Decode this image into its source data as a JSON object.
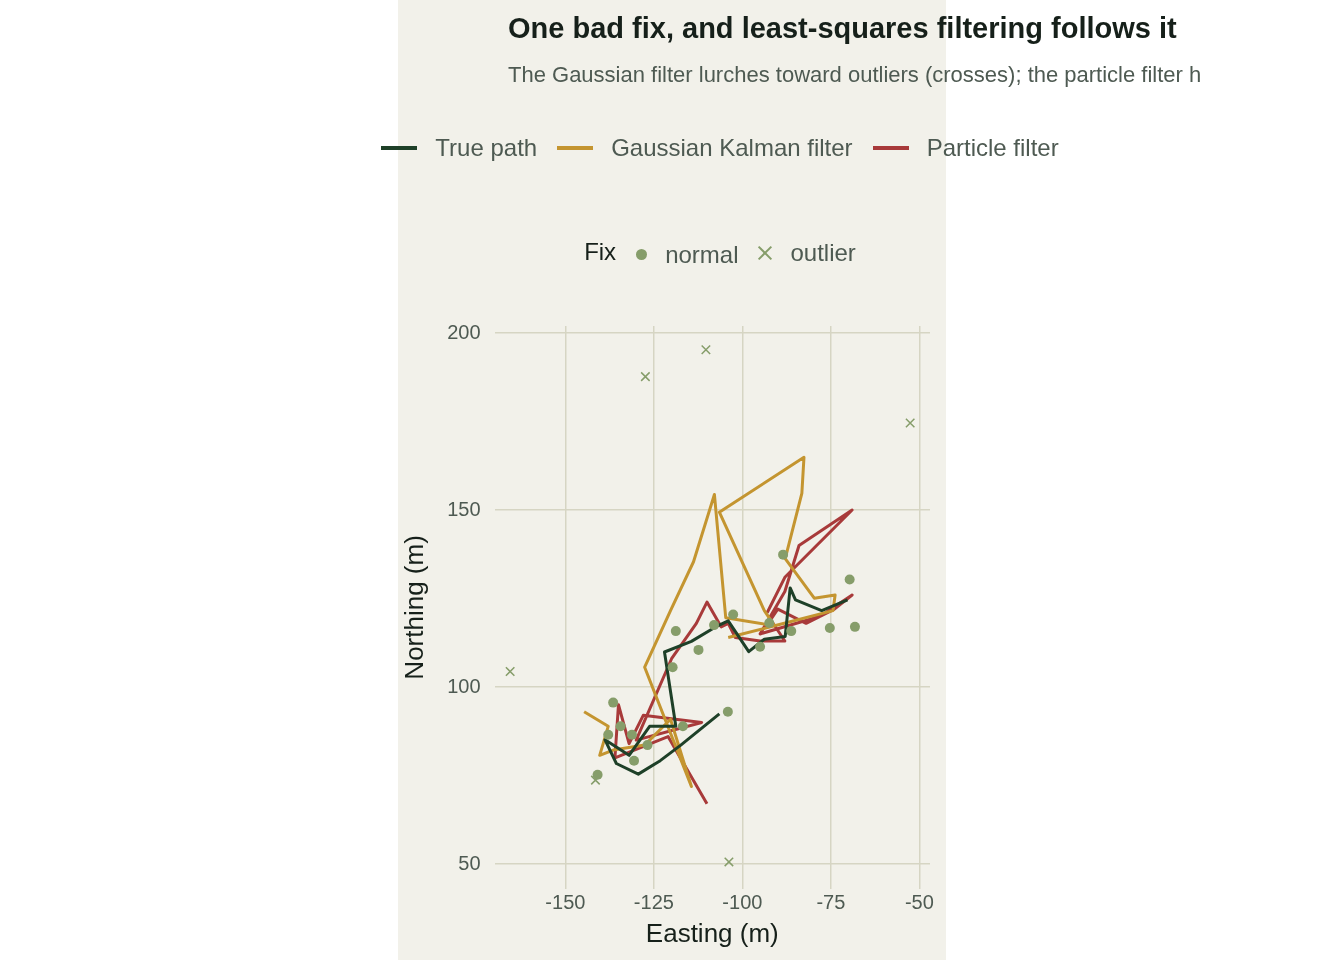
{
  "chart_data": {
    "type": "line",
    "title": "One bad fix, and least-squares filtering follows it",
    "subtitle": "The Gaussian filter lurches toward outliers (crosses); the particle filter h",
    "xlabel": "Easting (m)",
    "ylabel": "Northing (m)",
    "legend_title": "Fix",
    "xlim": [
      -170,
      -47
    ],
    "ylim": [
      43,
      202
    ],
    "xticks": [
      -150,
      -125,
      -100,
      -75,
      -50
    ],
    "yticks": [
      50,
      100,
      150,
      200
    ],
    "grid": true,
    "legend": "top",
    "series": [
      {
        "name": "True path",
        "type": "line",
        "color": "#1e4028",
        "marker": "none",
        "x": [
          -106.5,
          -117.4,
          -123.2,
          -129.4,
          -135.6,
          -138.8,
          -132,
          -126.2,
          -122.6,
          -118.8,
          -122,
          -114.4,
          -107,
          -104,
          -98.2,
          -93.8,
          -87.9,
          -86.5,
          -85,
          -77.6,
          -70.3
        ],
        "values": [
          92.4,
          83.6,
          79.2,
          75.4,
          78.4,
          85.1,
          80.7,
          88.9,
          88.9,
          88.9,
          109.9,
          112.9,
          117.3,
          118.7,
          110,
          113.5,
          114.3,
          128,
          124.6,
          121.6,
          124.6
        ]
      },
      {
        "name": "Gaussian Kalman filter",
        "type": "line",
        "color": "#c49530",
        "marker": "none",
        "x": [
          -144.7,
          -137.9,
          -140.3,
          -136.5,
          -127.6,
          -120.3,
          -114.4,
          -127.6,
          -120.3,
          -113.8,
          -107.9,
          -104.7,
          -90.9,
          -93.8,
          -106.5,
          -82.6,
          -83.2,
          -87.9,
          -79.7,
          -73.8,
          -74.4,
          -90.9,
          -104
        ],
        "values": [
          93,
          88.9,
          80.7,
          82.2,
          83.6,
          90.9,
          71.9,
          105.6,
          121.6,
          135.4,
          154.4,
          119.6,
          117.3,
          121.6,
          149.4,
          164.9,
          154.7,
          136.3,
          125.1,
          126,
          121.6,
          117.3,
          114
        ]
      },
      {
        "name": "Particle filter",
        "type": "line",
        "color": "#a83a3a",
        "marker": "none",
        "x": [
          -110,
          -121,
          -136,
          -135,
          -132,
          -128,
          -111.5,
          -130,
          -120,
          -113,
          -110,
          -106,
          -104,
          -102,
          -95,
          -88,
          -92,
          -90,
          -82,
          -74,
          -69,
          -78,
          -95,
          -88,
          -84,
          -69,
          -88,
          -93
        ],
        "values": [
          67,
          86,
          80,
          95,
          84,
          92,
          90,
          85,
          108,
          118,
          124,
          117,
          118,
          114,
          113,
          113,
          119,
          122,
          118,
          122,
          126,
          120,
          115,
          127,
          140,
          150,
          131,
          121
        ]
      },
      {
        "name": "normal",
        "type": "scatter",
        "color": "#869d6a",
        "marker": "circle",
        "x": [
          -140.9,
          -136.5,
          -130.6,
          -126.8,
          -116.8,
          -104.1,
          -119.7,
          -118.8,
          -112.4,
          -108,
          -102.6,
          -95,
          -88.5,
          -86.2,
          -75.3,
          -69.7,
          -68.2,
          -92.4,
          -134.4,
          -131.2,
          -137.9
        ],
        "values": [
          75.2,
          95.6,
          79.2,
          83.6,
          88.9,
          93,
          105.6,
          115.8,
          110.5,
          117.5,
          120.5,
          111.4,
          137.4,
          115.8,
          116.7,
          130.4,
          117,
          118.1,
          88.9,
          86.5,
          86.5
        ]
      },
      {
        "name": "outlier",
        "type": "scatter",
        "color": "#869d6a",
        "marker": "cross",
        "x": [
          -165.6,
          -141.5,
          -127.4,
          -110.3,
          -103.8,
          -52.6
        ],
        "values": [
          104.4,
          73.7,
          187.7,
          195.3,
          50.6,
          174.6
        ]
      }
    ]
  }
}
